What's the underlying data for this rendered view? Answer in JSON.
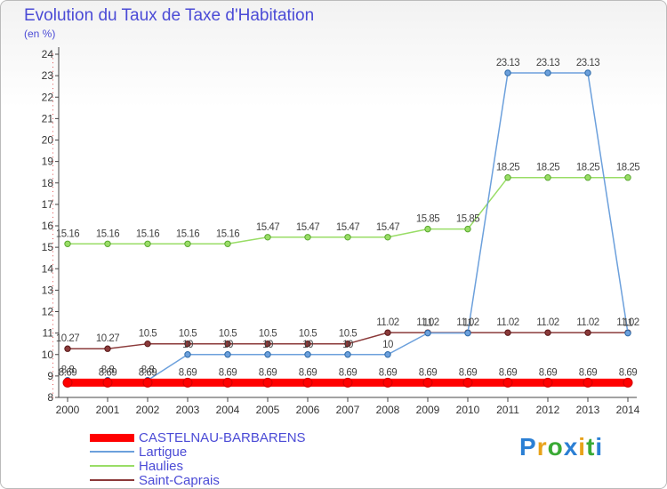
{
  "chart_data": {
    "type": "line",
    "title": "Evolution du Taux de Taxe d'Habitation",
    "subtitle": "(en %)",
    "xlabel": "",
    "ylabel": "(en %)",
    "x": [
      "2000",
      "2001",
      "2002",
      "2003",
      "2004",
      "2005",
      "2006",
      "2007",
      "2008",
      "2009",
      "2010",
      "2011",
      "2012",
      "2013",
      "2014"
    ],
    "ylim": [
      8,
      24
    ],
    "yticks": [
      "8",
      "9",
      "10",
      "11",
      "12",
      "13",
      "14",
      "15",
      "16",
      "17",
      "18",
      "19",
      "20",
      "21",
      "22",
      "23",
      "24"
    ],
    "series": [
      {
        "name": "CASTELNAU-BARBARENS",
        "color": "#ff0000",
        "values": [
          8.69,
          8.69,
          8.69,
          8.69,
          8.69,
          8.69,
          8.69,
          8.69,
          8.69,
          8.69,
          8.69,
          8.69,
          8.69,
          8.69,
          8.69
        ],
        "labels": [
          "8.69",
          "8.69",
          "8.69",
          "8.69",
          "8.69",
          "8.69",
          "8.69",
          "8.69",
          "8.69",
          "8.69",
          "8.69",
          "8.69",
          "8.69",
          "8.69",
          "8.69"
        ]
      },
      {
        "name": "Lartigue",
        "color": "#6ca0dc",
        "values": [
          8.8,
          8.8,
          8.8,
          10,
          10,
          10,
          10,
          10,
          10,
          11,
          11,
          23.13,
          23.13,
          23.13,
          11
        ],
        "labels": [
          "8.8",
          "8.8",
          "8.8",
          "10",
          "10",
          "10",
          "10",
          "10",
          "10",
          "11",
          "11",
          "23.13",
          "23.13",
          "23.13",
          "11"
        ]
      },
      {
        "name": "Haulies",
        "color": "#99dd66",
        "values": [
          15.16,
          15.16,
          15.16,
          15.16,
          15.16,
          15.47,
          15.47,
          15.47,
          15.47,
          15.85,
          15.85,
          18.25,
          18.25,
          18.25,
          18.25
        ],
        "labels": [
          "15.16",
          "15.16",
          "15.16",
          "15.16",
          "15.16",
          "15.47",
          "15.47",
          "15.47",
          "15.47",
          "15.85",
          "15.85",
          "18.25",
          "18.25",
          "18.25",
          "18.25"
        ]
      },
      {
        "name": "Saint-Caprais",
        "color": "#8b3a3a",
        "values": [
          10.27,
          10.27,
          10.5,
          10.5,
          10.5,
          10.5,
          10.5,
          10.5,
          11.02,
          11.02,
          11.02,
          11.02,
          11.02,
          11.02,
          11.02
        ],
        "labels": [
          "10.27",
          "10.27",
          "10.5",
          "10.5",
          "10.5",
          "10.5",
          "10.5",
          "10.5",
          "11.02",
          "11.02",
          "11.02",
          "11.02",
          "11.02",
          "11.02",
          "11.02"
        ]
      }
    ]
  },
  "brand": {
    "letters": [
      "P",
      "r",
      "o",
      "x",
      "i",
      "t",
      "i"
    ],
    "colors": [
      "#2b7fd4",
      "#e8a21a",
      "#3aaa35",
      "#2b7fd4",
      "#e8a21a",
      "#3aaa35",
      "#2b7fd4"
    ]
  }
}
